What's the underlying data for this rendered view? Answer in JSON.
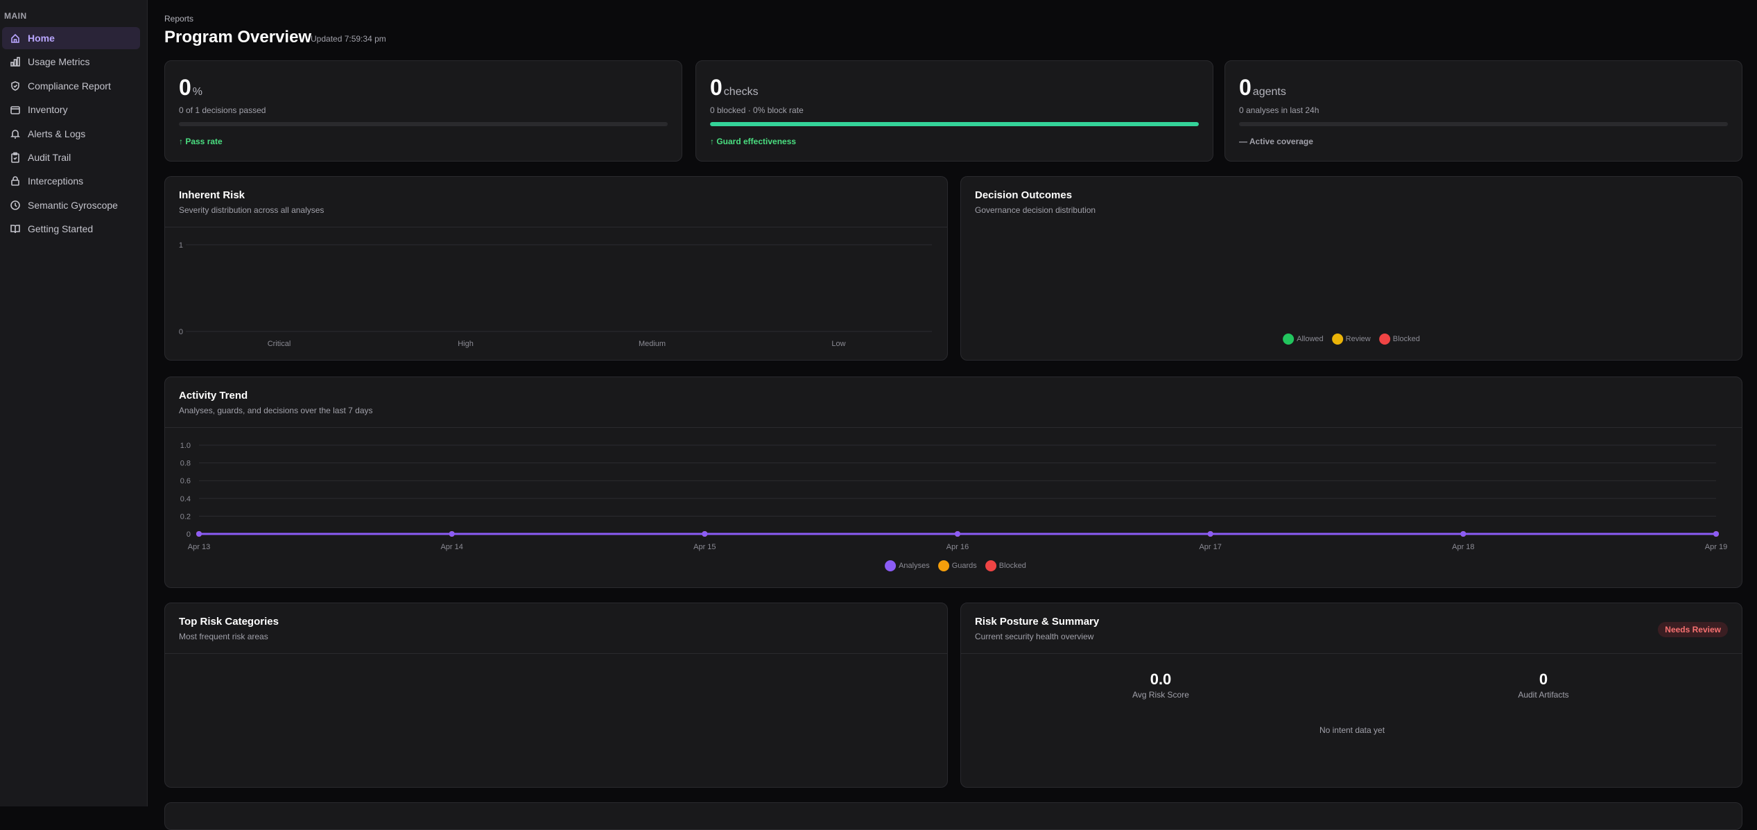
{
  "sidebar": {
    "section": "MAIN",
    "items": [
      {
        "label": "Home",
        "icon": "home-icon"
      },
      {
        "label": "Usage Metrics",
        "icon": "bar-chart-icon"
      },
      {
        "label": "Compliance Report",
        "icon": "shield-check-icon"
      },
      {
        "label": "Inventory",
        "icon": "box-icon"
      },
      {
        "label": "Alerts & Logs",
        "icon": "bell-icon"
      },
      {
        "label": "Audit Trail",
        "icon": "clipboard-check-icon"
      },
      {
        "label": "Interceptions",
        "icon": "lock-icon"
      },
      {
        "label": "Semantic Gyroscope",
        "icon": "clock-icon"
      },
      {
        "label": "Getting Started",
        "icon": "book-icon"
      }
    ]
  },
  "header": {
    "breadcrumb": "Reports",
    "title": "Program Overview",
    "updated": "Updated 7:59:34 pm"
  },
  "stats": [
    {
      "value": "0",
      "unit": "%",
      "sub": "0 of 1 decisions passed",
      "progress": 0,
      "footer": "↑ Pass rate"
    },
    {
      "value": "0",
      "unit": "checks",
      "sub": "0 blocked · 0% block rate",
      "progress": 100,
      "footer": "↑ Guard effectiveness"
    },
    {
      "value": "0",
      "unit": "agents",
      "sub": "0 analyses in last 24h",
      "progress": 0,
      "footer": "— Active coverage"
    }
  ],
  "colors": {
    "accent": "#8b5cf6",
    "green": "#22c55e",
    "amber": "#eab308",
    "red": "#ef4444",
    "orange": "#f59e0b"
  },
  "inherent_risk": {
    "title": "Inherent Risk",
    "subtitle": "Severity distribution across all analyses"
  },
  "decision_outcomes": {
    "title": "Decision Outcomes",
    "subtitle": "Governance decision distribution",
    "legend": [
      "Allowed",
      "Review",
      "Blocked"
    ]
  },
  "activity_trend": {
    "title": "Activity Trend",
    "subtitle": "Analyses, guards, and decisions over the last 7 days"
  },
  "top_risk": {
    "title": "Top Risk Categories",
    "subtitle": "Most frequent risk areas"
  },
  "risk_posture": {
    "title": "Risk Posture & Summary",
    "subtitle": "Current security health overview",
    "badge": "Needs Review",
    "avg_risk_score": "0.0",
    "avg_risk_label": "Avg Risk Score",
    "audit_artifacts": "0",
    "audit_label": "Audit Artifacts",
    "empty": "No intent data yet"
  },
  "chart_data": [
    {
      "type": "bar",
      "title": "Inherent Risk",
      "categories": [
        "Critical",
        "High",
        "Medium",
        "Low"
      ],
      "values": [
        0,
        0,
        0,
        0
      ],
      "ylim": [
        0,
        1
      ],
      "yticks": [
        "0",
        "1"
      ],
      "grid": true
    },
    {
      "type": "line",
      "title": "Activity Trend",
      "x": [
        "Apr 13",
        "Apr 14",
        "Apr 15",
        "Apr 16",
        "Apr 17",
        "Apr 18",
        "Apr 19"
      ],
      "yticks": [
        "0",
        "0.2",
        "0.4",
        "0.6",
        "0.8",
        "1.0"
      ],
      "ylim": [
        0,
        1
      ],
      "grid": true,
      "legend": "bottom",
      "series": [
        {
          "name": "Analyses",
          "color": "#8b5cf6",
          "values": [
            0,
            0,
            0,
            0,
            0,
            0,
            0
          ]
        },
        {
          "name": "Guards",
          "color": "#f59e0b",
          "values": [
            0,
            0,
            0,
            0,
            0,
            0,
            0
          ]
        },
        {
          "name": "Blocked",
          "color": "#ef4444",
          "values": [
            0,
            0,
            0,
            0,
            0,
            0,
            0
          ]
        }
      ]
    }
  ]
}
